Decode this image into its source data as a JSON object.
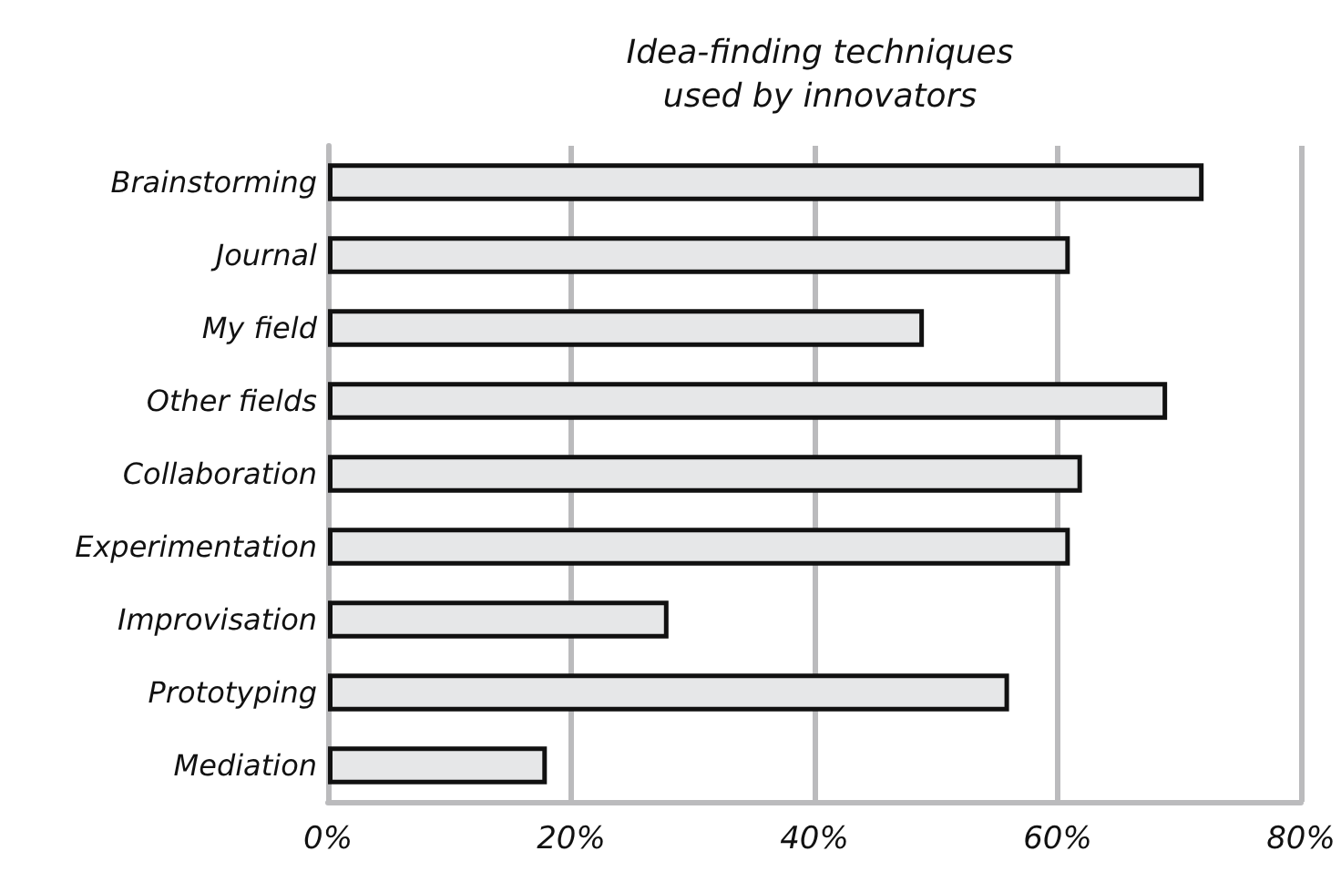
{
  "chart_data": {
    "type": "bar",
    "orientation": "horizontal",
    "title": "Idea-finding techniques\nused by innovators",
    "categories": [
      "Brainstorming",
      "Journal",
      "My field",
      "Other fields",
      "Collaboration",
      "Experimentation",
      "Improvisation",
      "Prototyping",
      "Mediation"
    ],
    "values": [
      72,
      61,
      49,
      69,
      62,
      61,
      28,
      56,
      18
    ],
    "color": "#e6e7e8",
    "xlim": [
      0,
      80
    ],
    "xticks": [
      {
        "value": 0,
        "label": "0%"
      },
      {
        "value": 20,
        "label": "20%"
      },
      {
        "value": 40,
        "label": "40%"
      },
      {
        "value": 60,
        "label": "60%"
      },
      {
        "value": 80,
        "label": "80%"
      }
    ],
    "grid": "x"
  }
}
